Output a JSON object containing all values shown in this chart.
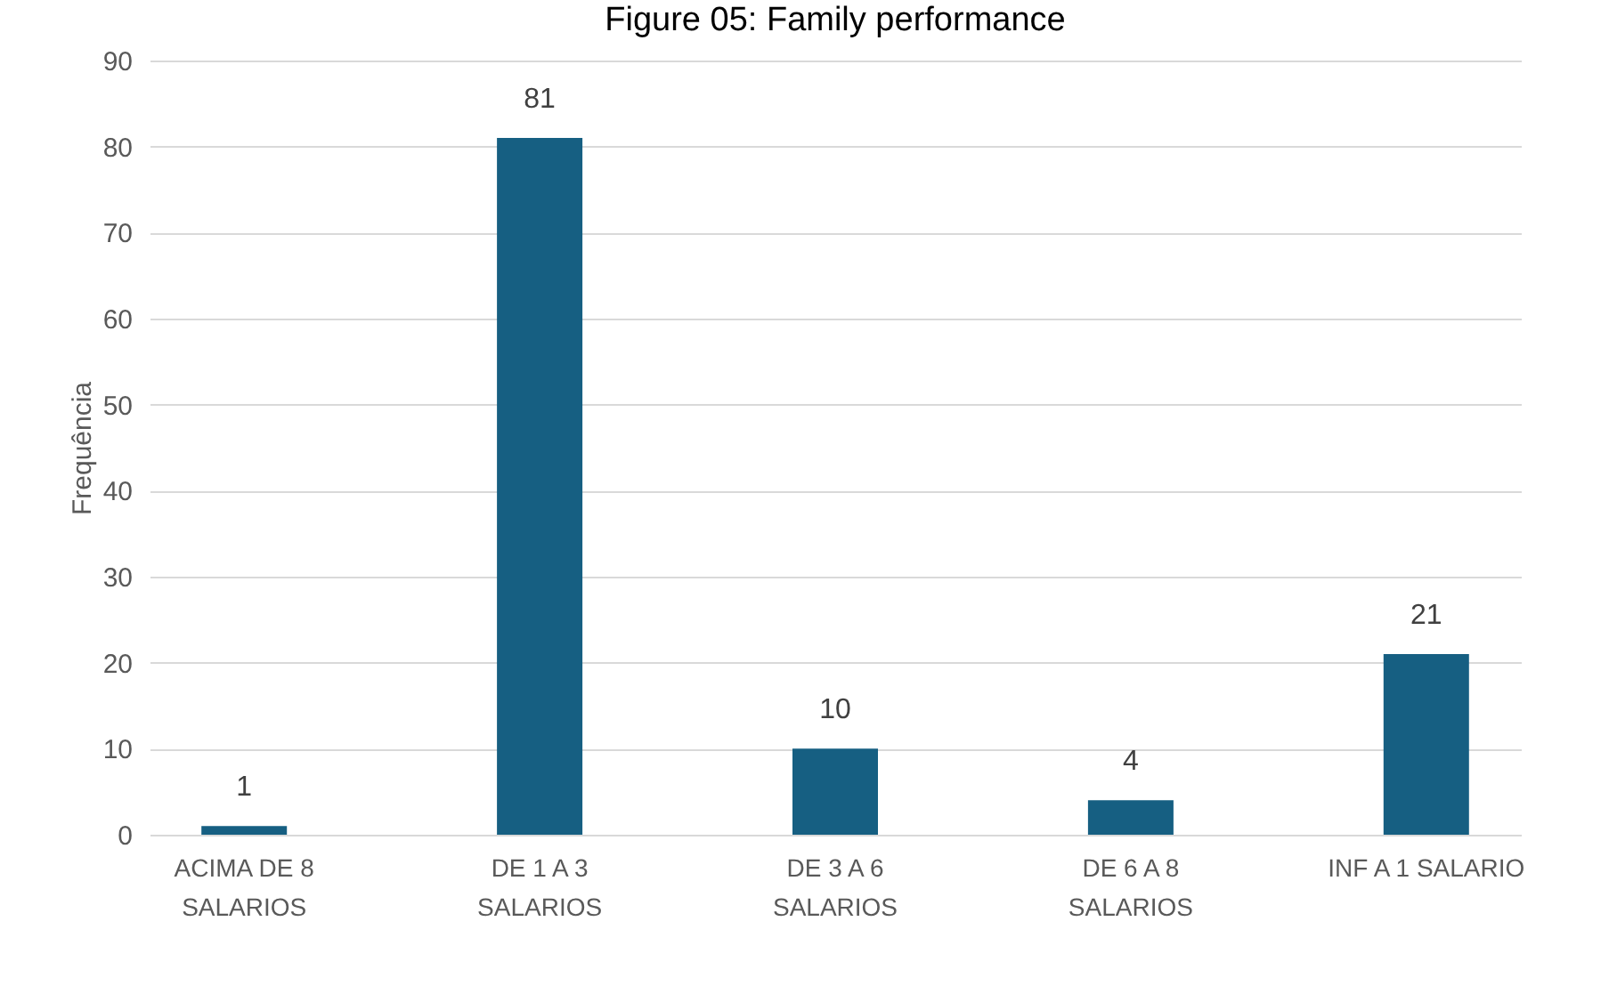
{
  "chart_data": {
    "type": "bar",
    "title": "Figure 05: Family performance",
    "ylabel": "Frequência",
    "categories": [
      "ACIMA DE 8\nSALARIOS",
      "DE 1 A 3\nSALARIOS",
      "DE 3 A 6\nSALARIOS",
      "DE 6 A 8\nSALARIOS",
      "INF A 1 SALARIO"
    ],
    "values": [
      1,
      81,
      10,
      4,
      21
    ],
    "color": "#165f82",
    "ylim": [
      0,
      90
    ],
    "yticks": [
      0,
      10,
      20,
      30,
      40,
      50,
      60,
      70,
      80,
      90
    ],
    "grid": "y",
    "data_labels": true
  }
}
